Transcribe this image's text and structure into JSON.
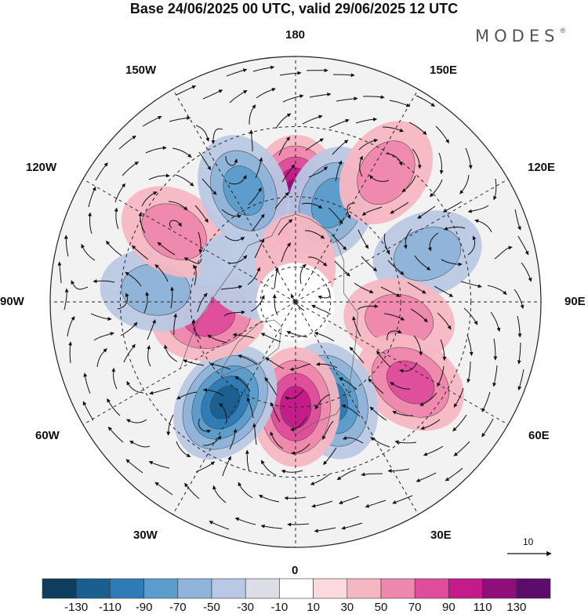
{
  "header": {
    "title": "Base 24/06/2025 00 UTC, valid 29/06/2025 12 UTC",
    "brand": "MODES",
    "brand_mark": "®"
  },
  "longitude_labels": {
    "l180": "180",
    "l150e": "150E",
    "l120e": "120E",
    "l90e": "90E",
    "l60e": "60E",
    "l30e": "30E",
    "l0": "0",
    "l30w": "30W",
    "l60w": "60W",
    "l90w": "90W",
    "l120w": "120W",
    "l150w": "150W"
  },
  "reference_vector": {
    "label": "10"
  },
  "colorbar": {
    "ticks": [
      "-130",
      "-110",
      "-90",
      "-70",
      "-50",
      "-30",
      "-10",
      "10",
      "30",
      "50",
      "70",
      "90",
      "110",
      "130"
    ],
    "colors": [
      "#0f3d5e",
      "#1a5f8f",
      "#2e7bb5",
      "#5b9ccc",
      "#8fb3d9",
      "#b9c8e4",
      "#dddde8",
      "#ffffff",
      "#fadadd",
      "#f5b7c2",
      "#ef88ad",
      "#df4c9b",
      "#c41a8a",
      "#8f0f7a",
      "#5c0d6b"
    ]
  },
  "anomaly_centers": [
    {
      "id": "a1",
      "lon": 180,
      "lat": 60,
      "value": 110
    },
    {
      "id": "a2",
      "lon": 160,
      "lat": 60,
      "value": -70
    },
    {
      "id": "a3",
      "lon": 145,
      "lat": 45,
      "value": 50
    },
    {
      "id": "a4",
      "lon": 110,
      "lat": 50,
      "value": -50
    },
    {
      "id": "a5",
      "lon": 80,
      "lat": 60,
      "value": 50
    },
    {
      "id": "a6",
      "lon": 55,
      "lat": 50,
      "value": 70
    },
    {
      "id": "a7",
      "lon": 20,
      "lat": 60,
      "value": -90
    },
    {
      "id": "a8",
      "lon": 0,
      "lat": 60,
      "value": 90
    },
    {
      "id": "a9",
      "lon": -35,
      "lat": 55,
      "value": -110
    },
    {
      "id": "a10",
      "lon": -80,
      "lat": 65,
      "value": 70
    },
    {
      "id": "a11",
      "lon": -95,
      "lat": 50,
      "value": -50
    },
    {
      "id": "a12",
      "lon": -120,
      "lat": 50,
      "value": 50
    },
    {
      "id": "a13",
      "lon": -155,
      "lat": 55,
      "value": -70
    },
    {
      "id": "a14",
      "lon": -120,
      "lat": 75,
      "value": -30
    },
    {
      "id": "a15",
      "lon": 180,
      "lat": 80,
      "value": 30
    }
  ]
}
